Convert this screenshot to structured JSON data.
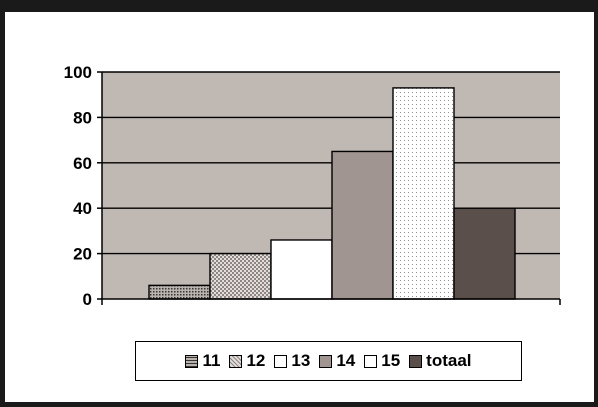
{
  "chart_data": {
    "type": "bar",
    "categories": [
      "11",
      "12",
      "13",
      "14",
      "15",
      "totaal"
    ],
    "values": [
      6,
      20,
      26,
      65,
      93,
      40
    ],
    "title": "",
    "xlabel": "",
    "ylabel": "",
    "ylim": [
      0,
      100
    ],
    "yticks": [
      0,
      20,
      40,
      60,
      80,
      100
    ],
    "grid": true,
    "legend_position": "bottom",
    "colors": {
      "plot_background": "#c0b8b3",
      "bars": [
        "#7d7775",
        "#b7b1ad",
        "#ffffff",
        "#a19592",
        "#ffffff",
        "#5a4f4b"
      ],
      "patterns": [
        "dense-dots",
        "checker",
        "solid",
        "solid",
        "sparse-dots",
        "solid"
      ]
    }
  }
}
